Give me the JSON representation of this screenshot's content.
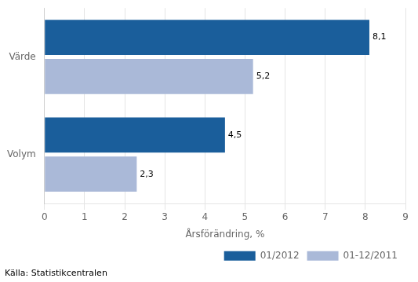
{
  "chart_data": {
    "type": "bar",
    "orientation": "horizontal",
    "categories": [
      "Värde",
      "Volym"
    ],
    "series": [
      {
        "name": "01/2012",
        "color": "#1A5E9B",
        "values": [
          8.1,
          4.5
        ],
        "value_labels": [
          "8,1",
          "4,5"
        ]
      },
      {
        "name": "01-12/2011",
        "color": "#AAB9D8",
        "values": [
          5.2,
          2.3
        ],
        "value_labels": [
          "5,2",
          "2,3"
        ]
      }
    ],
    "xlim": [
      0,
      9
    ],
    "xticks": [
      0,
      1,
      2,
      3,
      4,
      5,
      6,
      7,
      8,
      9
    ],
    "xlabel": "Årsförändring, %",
    "footnote": "Källa: Statistikcentralen",
    "grid": true,
    "legend": "lower right",
    "data_labels": true
  }
}
